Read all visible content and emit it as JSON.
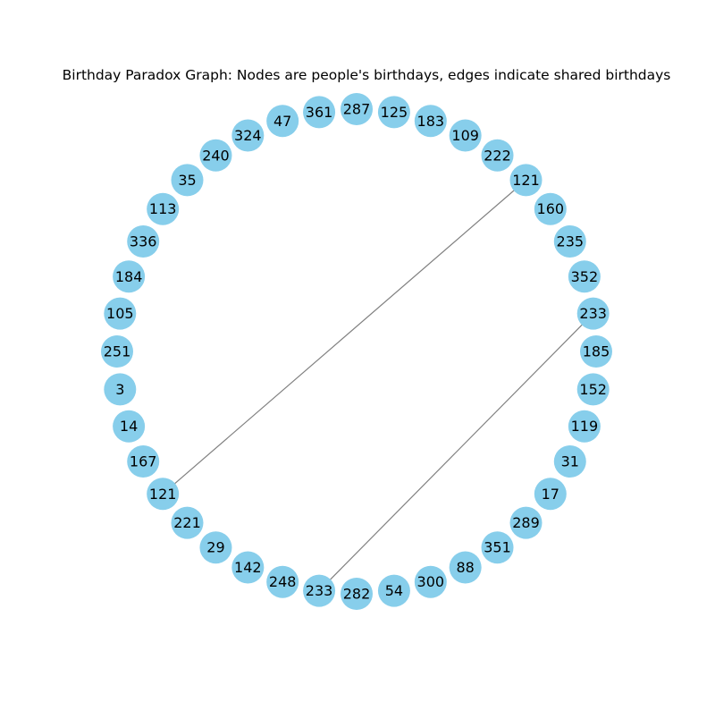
{
  "title": "Birthday Paradox Graph: Nodes are people's birthdays, edges indicate shared birthdays",
  "colors": {
    "node_fill": "#87ceeb",
    "edge": "#808080",
    "label": "#000000",
    "background": "#ffffff"
  },
  "nodes": [
    "287",
    "125",
    "183",
    "109",
    "222",
    "121",
    "160",
    "235",
    "352",
    "233",
    "185",
    "152",
    "119",
    "31",
    "17",
    "289",
    "351",
    "88",
    "300",
    "54",
    "282",
    "233",
    "248",
    "142",
    "29",
    "221",
    "121",
    "167",
    "14",
    "3",
    "251",
    "105",
    "184",
    "336",
    "113",
    "35",
    "240",
    "324",
    "47",
    "361"
  ],
  "edges": [
    {
      "from_index": 5,
      "to_index": 26
    },
    {
      "from_index": 9,
      "to_index": 21
    }
  ]
}
